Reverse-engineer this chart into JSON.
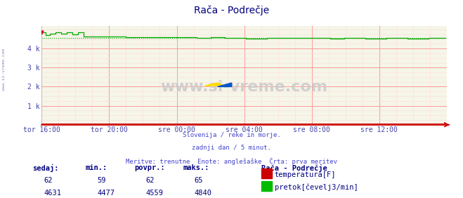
{
  "title": "Rača - Podrečje",
  "title_color": "#000080",
  "bg_color": "#ffffff",
  "plot_bg_color": "#f5f5e8",
  "grid_color_major": "#ff9999",
  "grid_color_minor": "#ffdddd",
  "x_labels": [
    "tor 16:00",
    "tor 20:00",
    "sre 00:00",
    "sre 04:00",
    "sre 08:00",
    "sre 12:00"
  ],
  "x_ticks_norm": [
    0.0,
    0.1667,
    0.3333,
    0.5,
    0.6667,
    0.8333
  ],
  "tick_label_color": "#4444aa",
  "y_ticks": [
    0,
    1000,
    2000,
    3000,
    4000
  ],
  "y_tick_labels": [
    "",
    "1 k",
    "2 k",
    "3 k",
    "4 k"
  ],
  "ylim": [
    0,
    5200
  ],
  "xlim": [
    0,
    288
  ],
  "subtitle_lines": [
    "Slovenija / reke in morje.",
    "zadnji dan / 5 minut.",
    "Meritve: trenutne  Enote: anglešaške  Črta: prva meritev"
  ],
  "subtitle_color": "#4444cc",
  "watermark": "www.si-vreme.com",
  "left_label": "www.si-vreme.com",
  "left_label_color": "#8888bb",
  "legend_title": "Rača - Podrečje",
  "legend_items": [
    {
      "label": "temperatura[F]",
      "color": "#cc0000"
    },
    {
      "label": "pretok[čevelj3/min]",
      "color": "#00bb00"
    }
  ],
  "table_headers": [
    "sedaj:",
    "min.:",
    "povpr.:",
    "maks.:"
  ],
  "table_row1": [
    "62",
    "59",
    "62",
    "65"
  ],
  "table_row2": [
    "4631",
    "4477",
    "4559",
    "4840"
  ],
  "x_axis_color": "#cc0000",
  "dotted_line_value": 4559,
  "flow_line_color": "#00aa00",
  "temp_line_color": "#cc0000"
}
